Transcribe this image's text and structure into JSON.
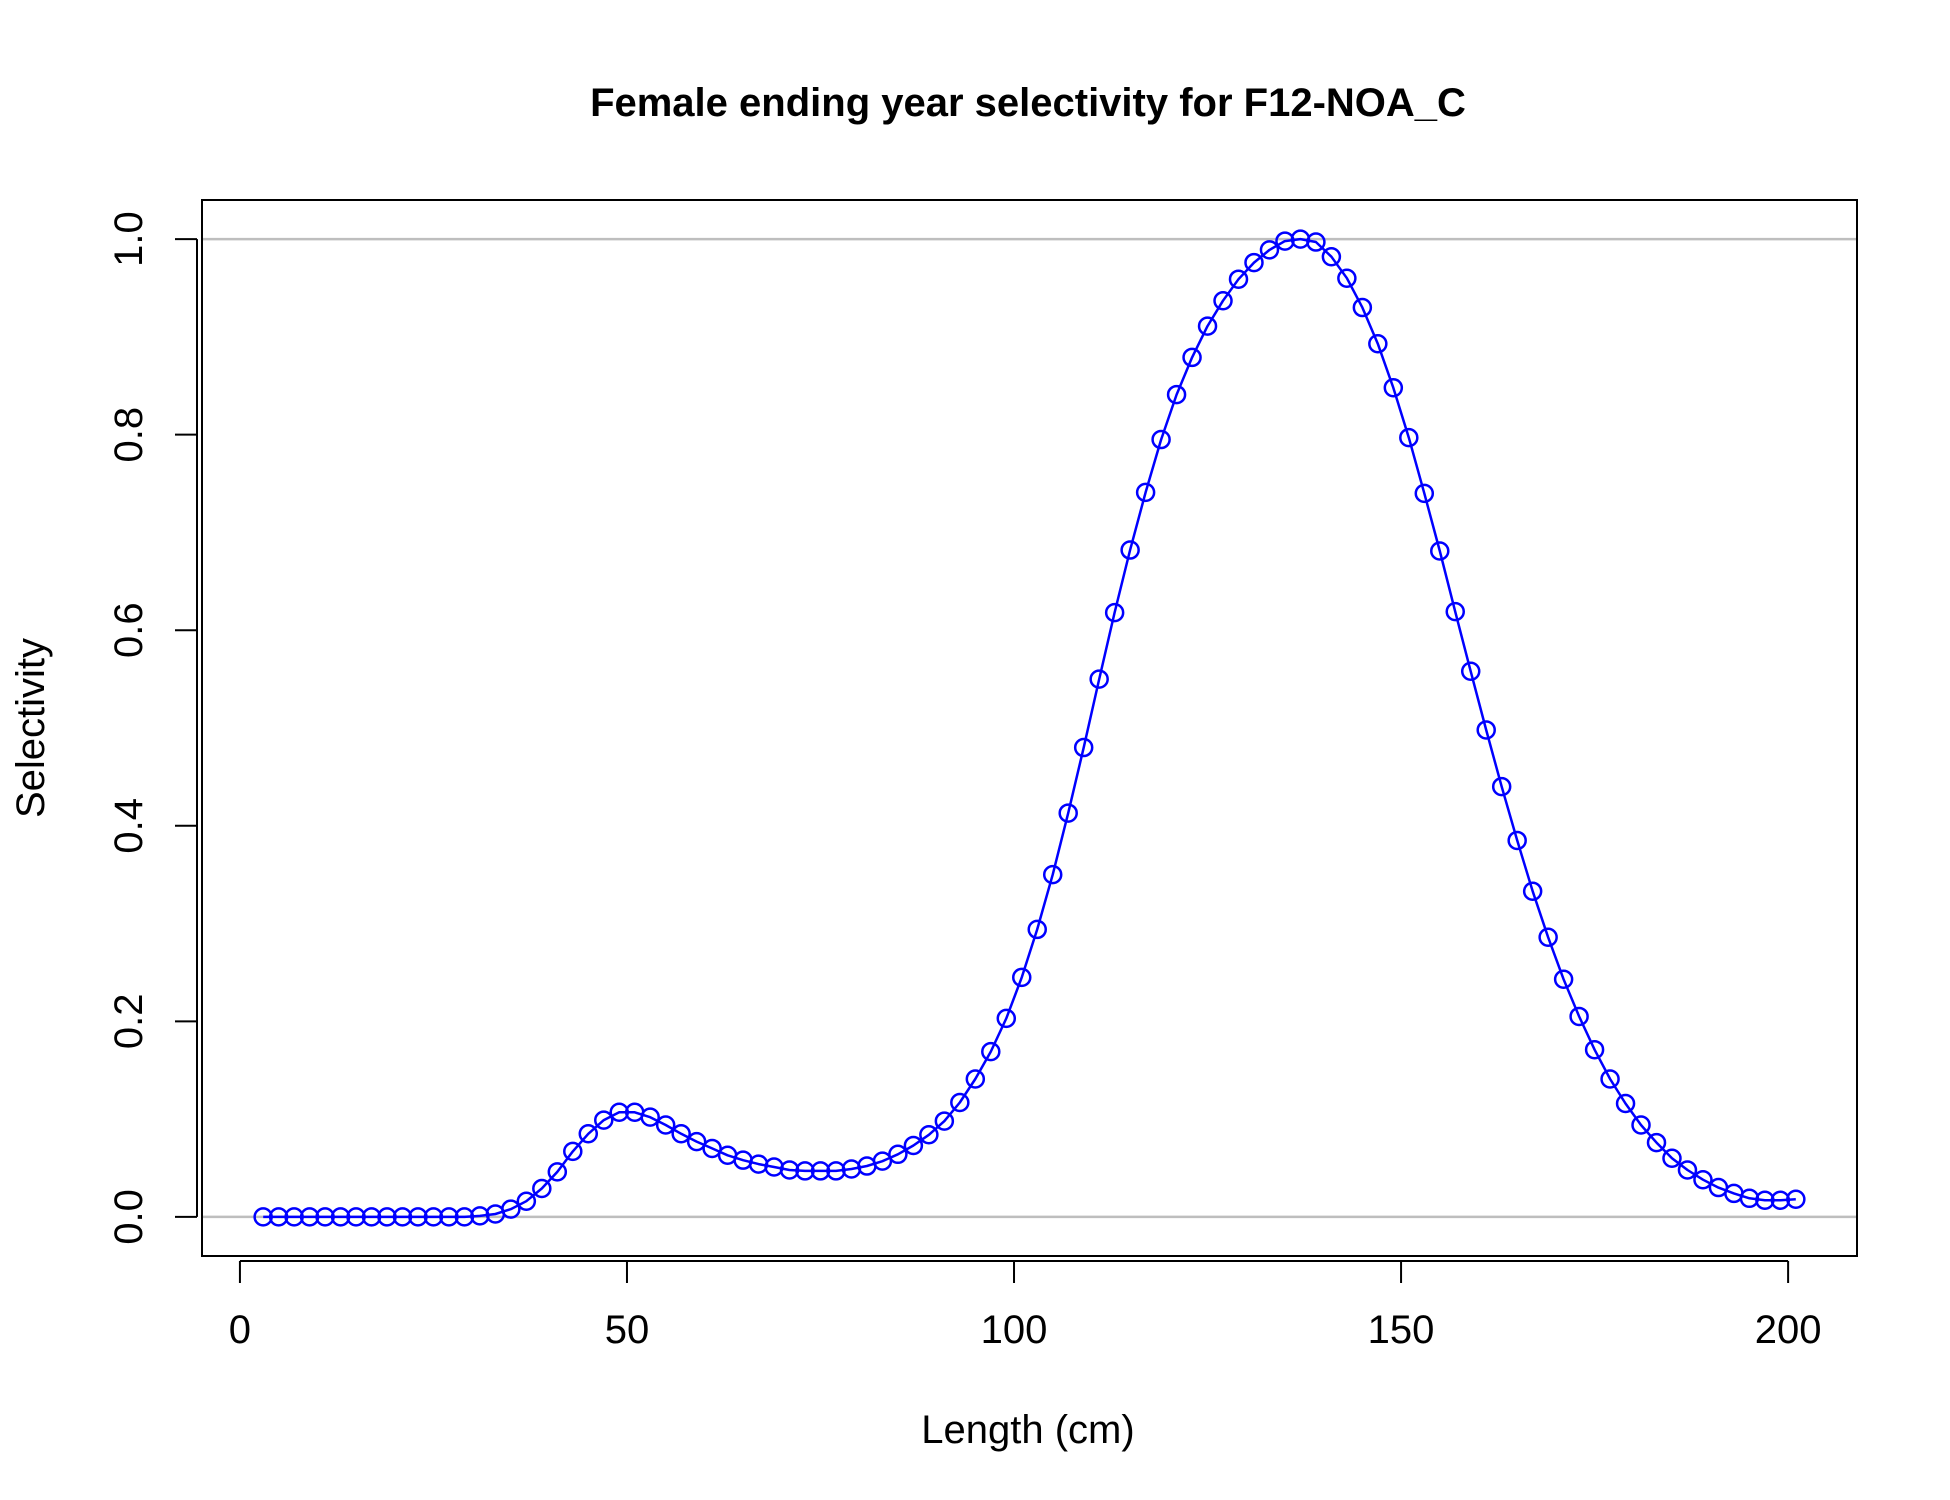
{
  "chart_data": {
    "type": "line",
    "title": "Female ending year selectivity for F12-NOA_C",
    "xlabel": "Length (cm)",
    "ylabel": "Selectivity",
    "xlim": [
      -4.9,
      208.9
    ],
    "ylim": [
      -0.04,
      1.04
    ],
    "x_ticks": [
      "0",
      "50",
      "100",
      "150",
      "200"
    ],
    "y_ticks": [
      "0.0",
      "0.2",
      "0.4",
      "0.6",
      "0.8",
      "1.0"
    ],
    "reference_lines": [
      0,
      1
    ],
    "grid": false,
    "legend": "none",
    "colors": {
      "series": "#0000ff",
      "reference": "#bebebe",
      "frame": "#000000"
    },
    "series": [
      {
        "marker": "open-circle",
        "x": [
          3,
          5,
          7,
          9,
          11,
          13,
          15,
          17,
          19,
          21,
          23,
          25,
          27,
          29,
          31,
          33,
          35,
          37,
          39,
          41,
          43,
          45,
          47,
          49,
          51,
          53,
          55,
          57,
          59,
          61,
          63,
          65,
          67,
          69,
          71,
          73,
          75,
          77,
          79,
          81,
          83,
          85,
          87,
          89,
          91,
          93,
          95,
          97,
          99,
          101,
          103,
          105,
          107,
          109,
          111,
          113,
          115,
          117,
          119,
          121,
          123,
          125,
          127,
          129,
          131,
          133,
          135,
          137,
          139,
          141,
          143,
          145,
          147,
          149,
          151,
          153,
          155,
          157,
          159,
          161,
          163,
          165,
          167,
          169,
          171,
          173,
          175,
          177,
          179,
          181,
          183,
          185,
          187,
          189,
          191,
          193,
          195,
          197,
          199,
          201
        ],
        "values": [
          0.0,
          0.0,
          0.0,
          0.0,
          0.0,
          0.0,
          0.0,
          0.0,
          0.0,
          0.0,
          0.0,
          0.0,
          0.0,
          0.0,
          0.001,
          0.003,
          0.008,
          0.016,
          0.029,
          0.046,
          0.067,
          0.085,
          0.099,
          0.107,
          0.107,
          0.102,
          0.094,
          0.085,
          0.077,
          0.07,
          0.063,
          0.058,
          0.054,
          0.051,
          0.048,
          0.047,
          0.047,
          0.047,
          0.049,
          0.052,
          0.057,
          0.064,
          0.073,
          0.084,
          0.098,
          0.117,
          0.141,
          0.169,
          0.203,
          0.245,
          0.294,
          0.35,
          0.413,
          0.48,
          0.55,
          0.618,
          0.682,
          0.741,
          0.795,
          0.841,
          0.879,
          0.911,
          0.937,
          0.959,
          0.976,
          0.989,
          0.998,
          1.0,
          0.997,
          0.982,
          0.96,
          0.93,
          0.893,
          0.848,
          0.797,
          0.74,
          0.681,
          0.619,
          0.558,
          0.498,
          0.44,
          0.385,
          0.333,
          0.286,
          0.243,
          0.205,
          0.171,
          0.141,
          0.116,
          0.094,
          0.076,
          0.06,
          0.048,
          0.038,
          0.03,
          0.024,
          0.019,
          0.017,
          0.017,
          0.018
        ]
      }
    ]
  }
}
